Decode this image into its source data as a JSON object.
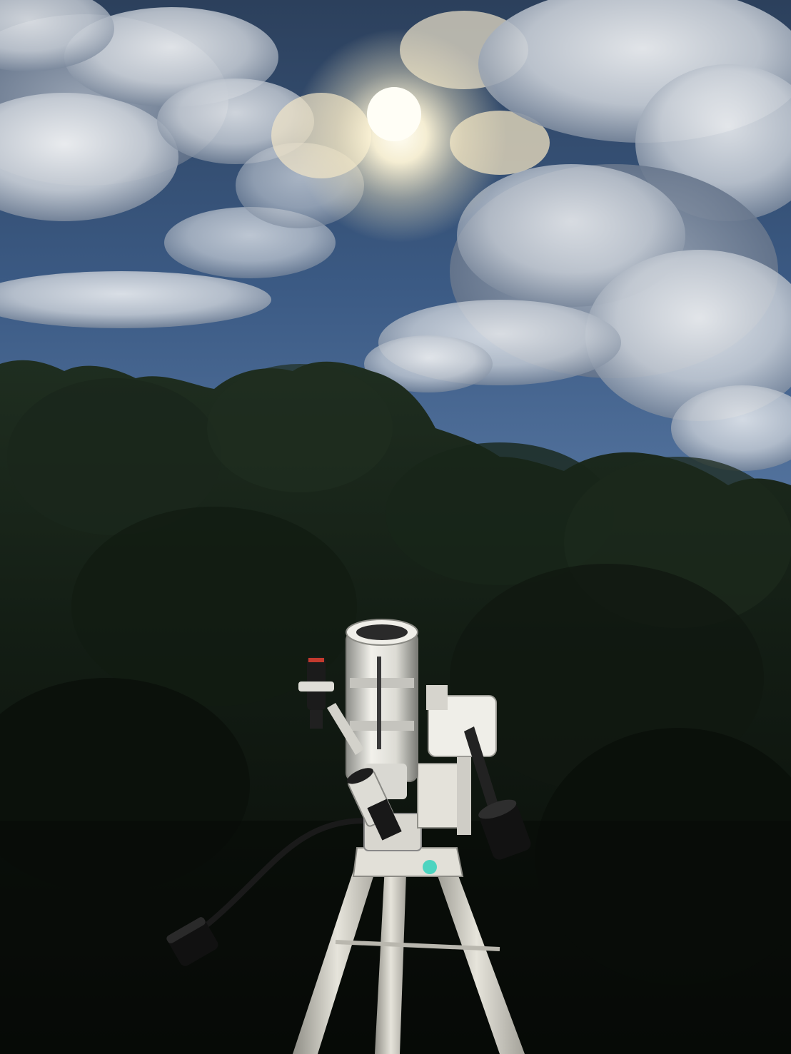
{
  "image": {
    "subject": "telescope-on-tripod",
    "colors": {
      "sky_top": "#2f4562",
      "sky_mid": "#3d5a80",
      "sky_low": "#5a7aa6",
      "cloud_light": "#eef0f2",
      "cloud_shadow": "#7f8da0",
      "sun": "#fffbe8",
      "foliage_dark": "#0c130d",
      "foliage_mid": "#1b2a1c",
      "telescope_white": "#e9e8e2",
      "telescope_shadow": "#9a9b96",
      "counterweight": "#141414"
    }
  }
}
